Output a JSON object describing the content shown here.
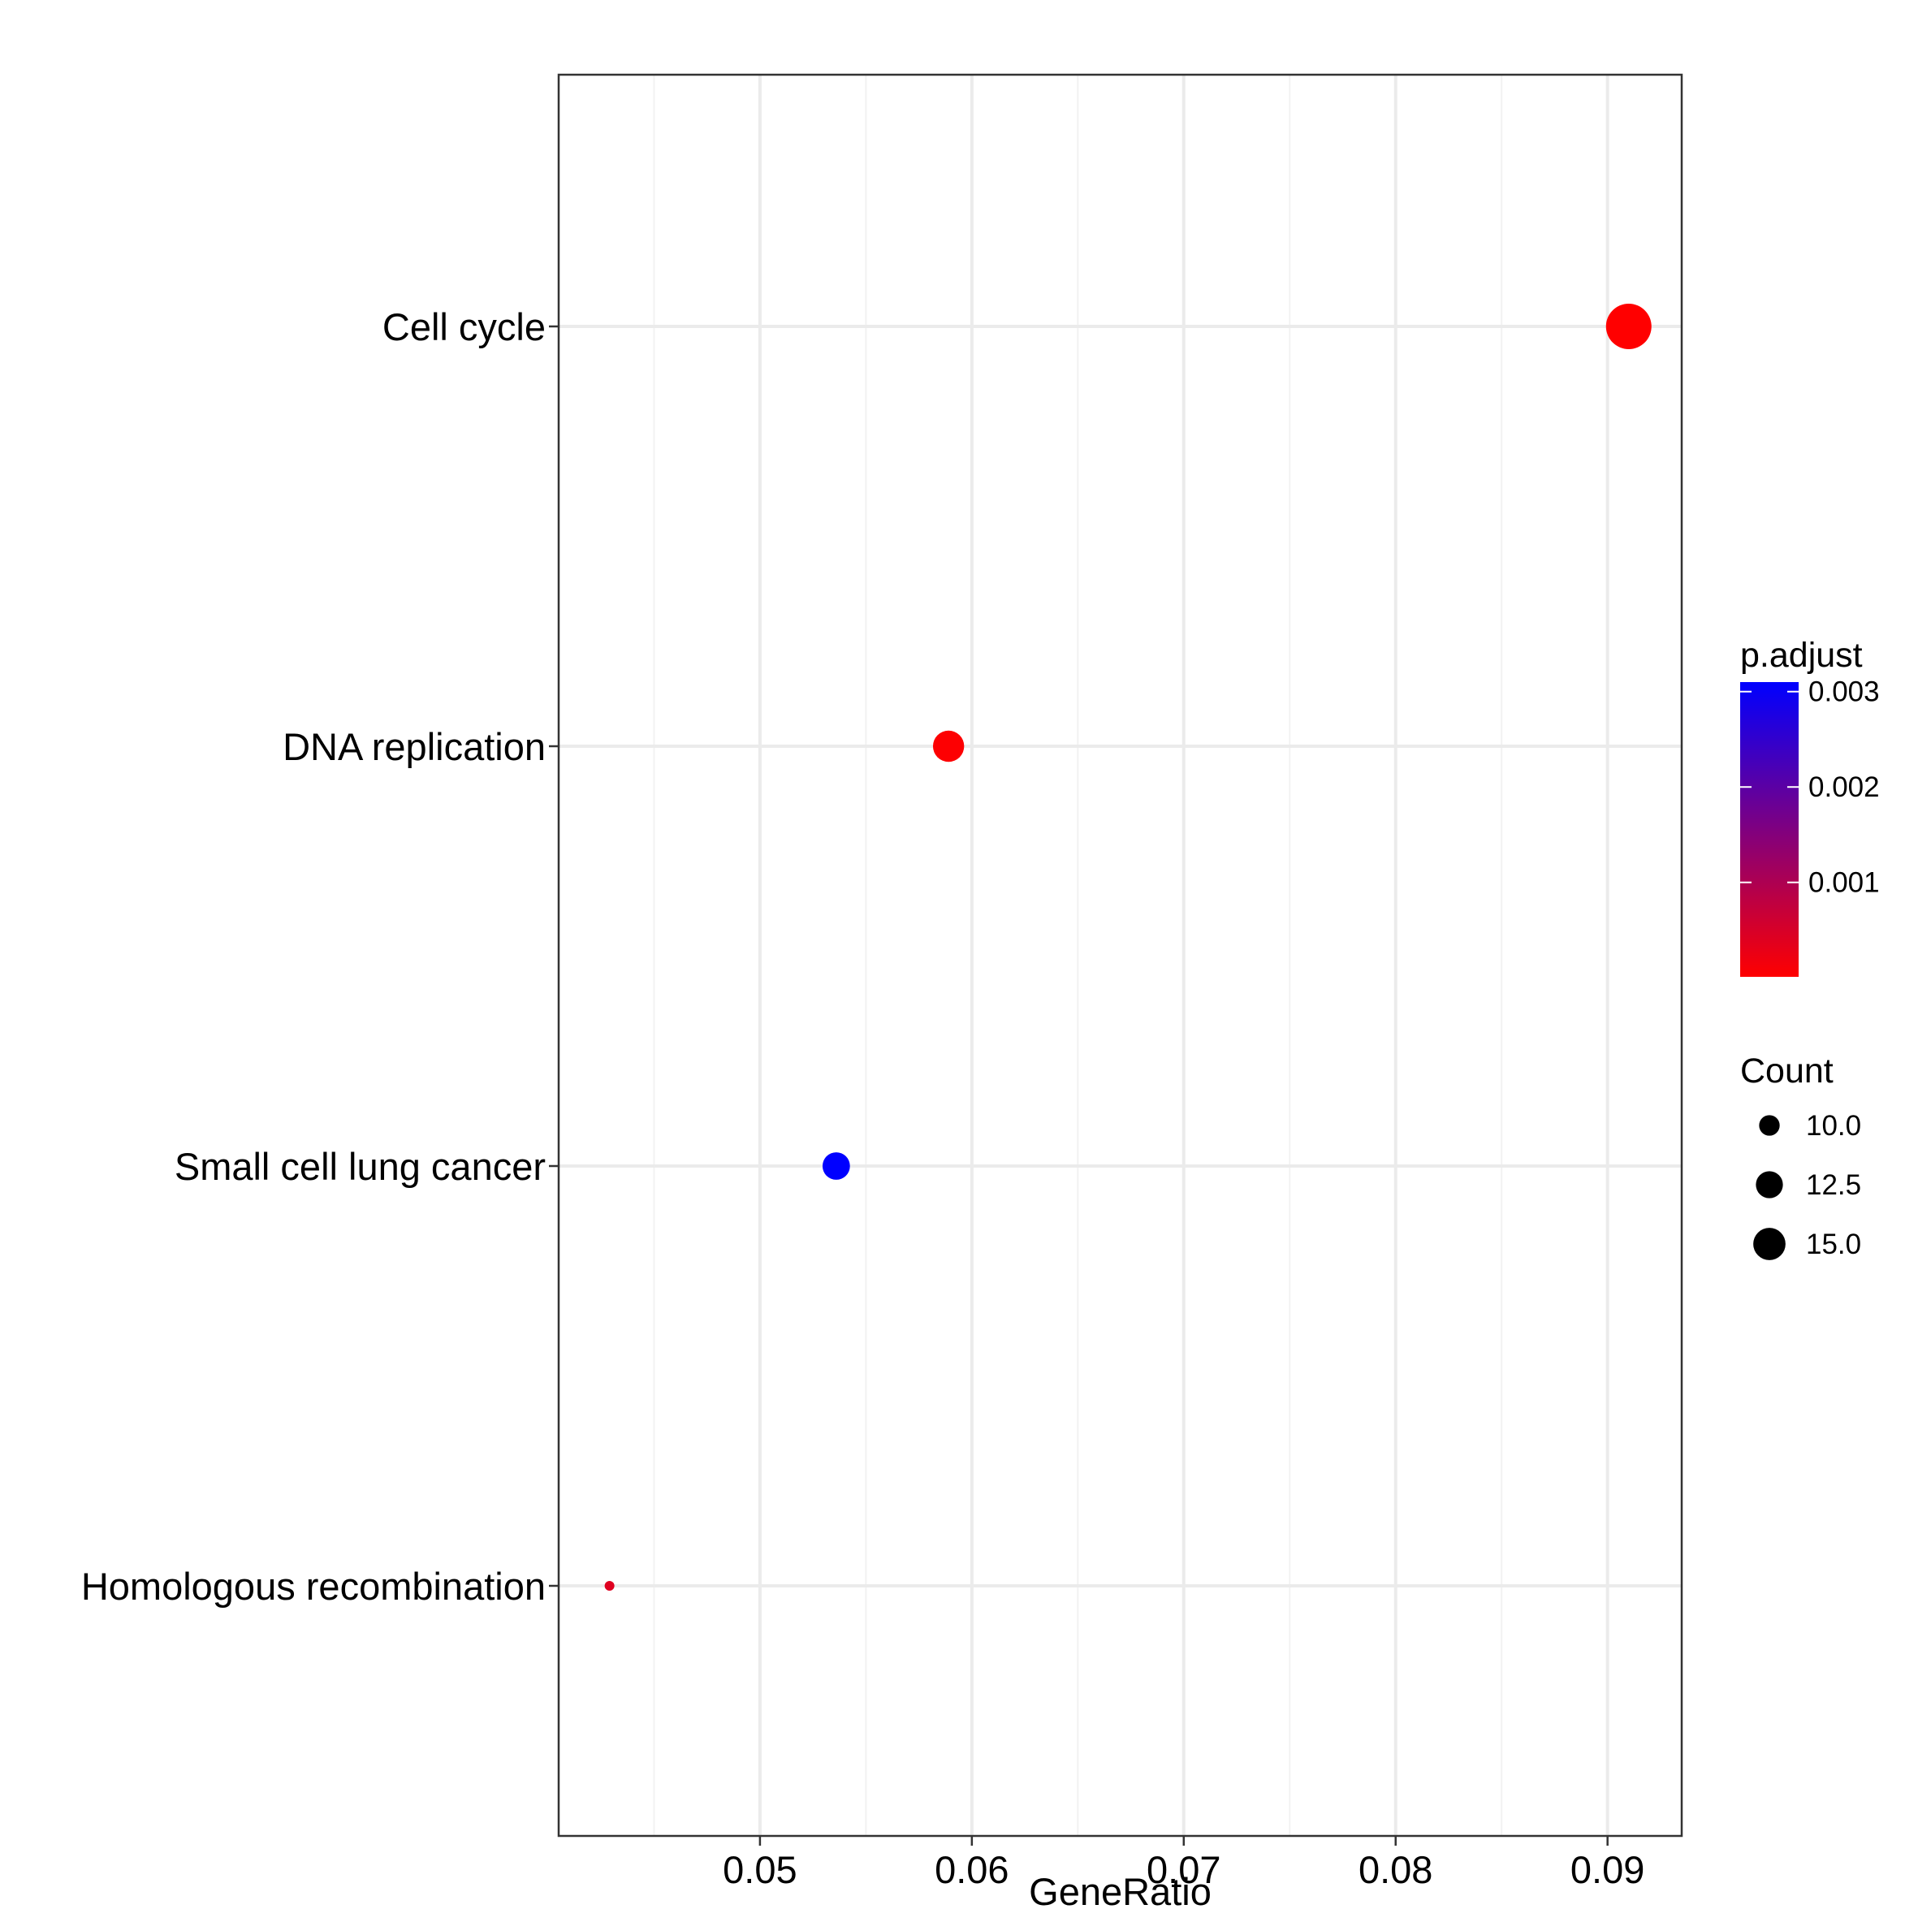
{
  "chart_data": {
    "type": "scatter",
    "xlabel": "GeneRatio",
    "ylabel": "",
    "xlim": [
      0.0405,
      0.0935
    ],
    "xticks": [
      {
        "value": 0.05,
        "label": "0.05"
      },
      {
        "value": 0.06,
        "label": "0.06"
      },
      {
        "value": 0.07,
        "label": "0.07"
      },
      {
        "value": 0.08,
        "label": "0.08"
      },
      {
        "value": 0.09,
        "label": "0.09"
      }
    ],
    "grid": true,
    "categories": [
      "Cell cycle",
      "DNA replication",
      "Small cell lung cancer",
      "Homologous recombination"
    ],
    "points": [
      {
        "category": "Cell cycle",
        "x": 0.091,
        "count": 16,
        "p_adjust": 1e-05
      },
      {
        "category": "DNA replication",
        "x": 0.0589,
        "count": 11,
        "p_adjust": 3e-05
      },
      {
        "category": "Small cell lung cancer",
        "x": 0.0536,
        "count": 10,
        "p_adjust": 0.0031
      },
      {
        "category": "Homologous recombination",
        "x": 0.0429,
        "count": 7,
        "p_adjust": 0.0004
      }
    ],
    "legend_position": "right",
    "color_legend": {
      "title": "p.adjust",
      "min": 1e-05,
      "max": 0.0031,
      "low_color": "#ff0000",
      "high_color": "#0000ff",
      "ticks": [
        {
          "value": 0.003,
          "label": "0.003"
        },
        {
          "value": 0.002,
          "label": "0.002"
        },
        {
          "value": 0.001,
          "label": "0.001"
        }
      ]
    },
    "size_legend": {
      "title": "Count",
      "entries": [
        {
          "value": 10.0,
          "label": "10.0"
        },
        {
          "value": 12.5,
          "label": "12.5"
        },
        {
          "value": 15.0,
          "label": "15.0"
        }
      ]
    }
  },
  "colors": {
    "panel_border": "#333333",
    "grid_major": "#ebebeb",
    "grid_minor": "#f2f2f2",
    "legend_dot": "#000000"
  }
}
